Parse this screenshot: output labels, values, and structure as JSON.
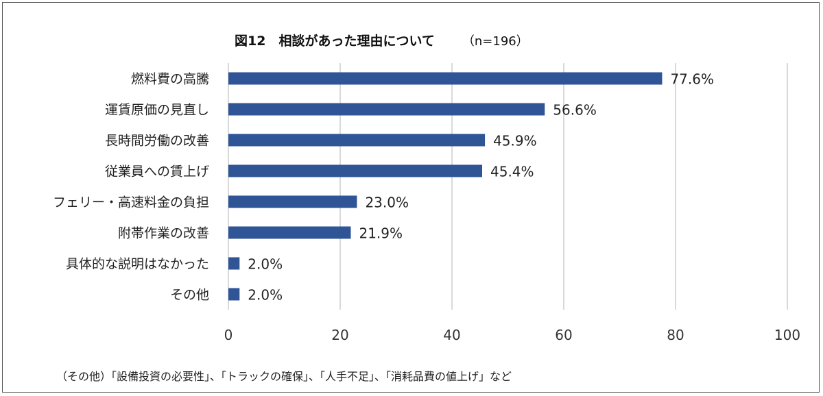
{
  "title": "図12　相談があった理由について",
  "sample_size": "（n=196）",
  "footnote": "（その他）「設備投資の必要性」、「トラックの確保」、「人手不足」、「消耗品費の値上げ」など",
  "colors": {
    "bar": "#2f5597",
    "grid": "#d9d9d9"
  },
  "chart_data": {
    "type": "bar",
    "orientation": "horizontal",
    "title": "図12　相談があった理由について",
    "categories": [
      "燃料費の高騰",
      "運賃原価の見直し",
      "長時間労働の改善",
      "従業員への賃上げ",
      "フェリー・高速料金の負担",
      "附帯作業の改善",
      "具体的な説明はなかった",
      "その他"
    ],
    "values": [
      77.6,
      56.6,
      45.9,
      45.4,
      23.0,
      21.9,
      2.0,
      2.0
    ],
    "value_labels": [
      "77.6%",
      "56.6%",
      "45.9%",
      "45.4%",
      "23.0%",
      "21.9%",
      "2.0%",
      "2.0%"
    ],
    "xlim": [
      0,
      100
    ],
    "xticks": [
      0,
      20,
      40,
      60,
      80,
      100
    ],
    "xtick_labels": [
      "0",
      "20",
      "40",
      "60",
      "80",
      "100"
    ],
    "grid": true,
    "legend": "none"
  }
}
